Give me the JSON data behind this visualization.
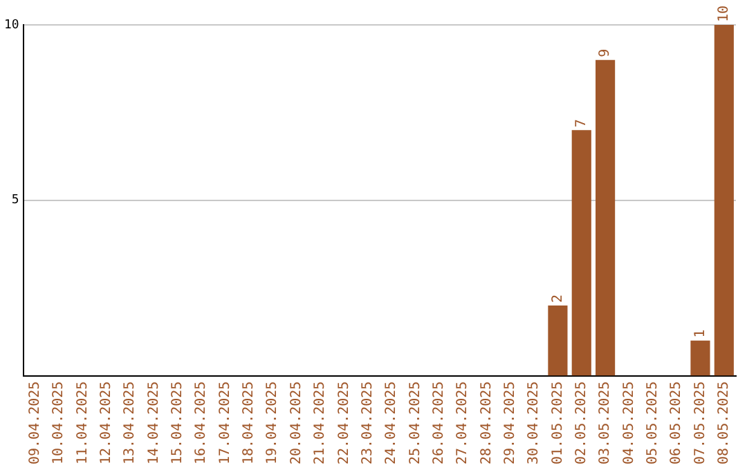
{
  "chart_data": {
    "type": "bar",
    "categories": [
      "09.04.2025",
      "10.04.2025",
      "11.04.2025",
      "12.04.2025",
      "13.04.2025",
      "14.04.2025",
      "15.04.2025",
      "16.04.2025",
      "17.04.2025",
      "18.04.2025",
      "19.04.2025",
      "20.04.2025",
      "21.04.2025",
      "22.04.2025",
      "23.04.2025",
      "24.04.2025",
      "25.04.2025",
      "26.04.2025",
      "27.04.2025",
      "28.04.2025",
      "29.04.2025",
      "30.04.2025",
      "01.05.2025",
      "02.05.2025",
      "03.05.2025",
      "04.05.2025",
      "05.05.2025",
      "06.05.2025",
      "07.05.2025",
      "08.05.2025"
    ],
    "values": [
      0,
      0,
      0,
      0,
      0,
      0,
      0,
      0,
      0,
      0,
      0,
      0,
      0,
      0,
      0,
      0,
      0,
      0,
      0,
      0,
      0,
      0,
      2,
      7,
      9,
      0,
      0,
      0,
      1,
      10
    ],
    "value_labels": [
      null,
      null,
      null,
      null,
      null,
      null,
      null,
      null,
      null,
      null,
      null,
      null,
      null,
      null,
      null,
      null,
      null,
      null,
      null,
      null,
      null,
      null,
      "2",
      "7",
      "9",
      null,
      null,
      null,
      "1",
      "10"
    ],
    "color": "#a0572a",
    "ylim": [
      0,
      10
    ],
    "yticks": [
      5,
      10
    ],
    "grid": "y",
    "legend": false
  }
}
